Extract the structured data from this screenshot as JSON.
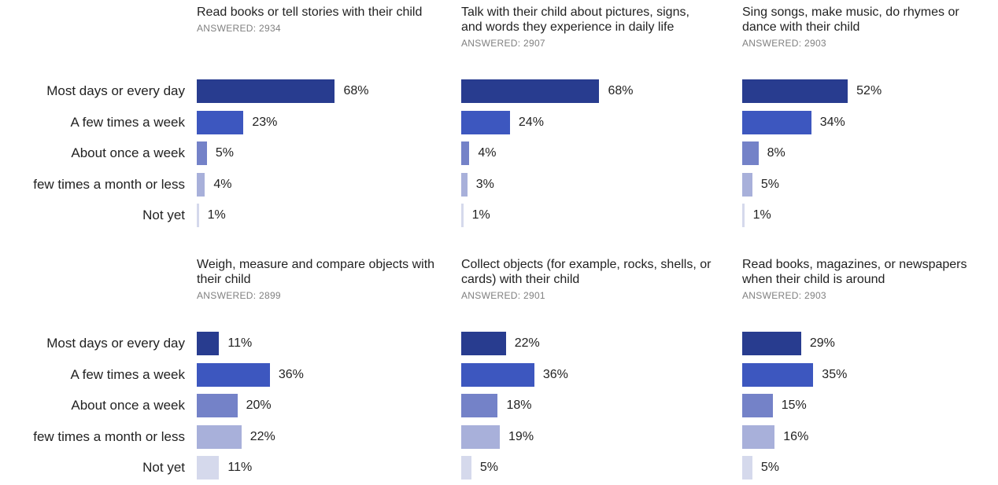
{
  "chart_data": {
    "type": "bar",
    "categories": [
      "Most days or every day",
      "A few times a week",
      "About once a week",
      "few times a month or less",
      "Not yet"
    ],
    "category_colors": [
      "#283c8f",
      "#3d57bf",
      "#7482c8",
      "#a8b0da",
      "#d5d9ec"
    ],
    "value_suffix": "%",
    "panels": [
      {
        "title": "Read books or tell stories with their child",
        "answered_label": "ANSWERED:",
        "answered": 2934,
        "values": [
          68,
          23,
          5,
          4,
          1
        ]
      },
      {
        "title": "Talk with their child about pictures, signs, and words they experience in daily life",
        "answered_label": "ANSWERED:",
        "answered": 2907,
        "values": [
          68,
          24,
          4,
          3,
          1
        ]
      },
      {
        "title": "Sing songs, make music, do rhymes or dance with their child",
        "answered_label": "ANSWERED:",
        "answered": 2903,
        "values": [
          52,
          34,
          8,
          5,
          1
        ]
      },
      {
        "title": "Weigh, measure and compare objects with their child",
        "answered_label": "ANSWERED:",
        "answered": 2899,
        "values": [
          11,
          36,
          20,
          22,
          11
        ]
      },
      {
        "title": "Collect objects (for example, rocks, shells, or cards) with their child",
        "answered_label": "ANSWERED:",
        "answered": 2901,
        "values": [
          22,
          36,
          18,
          19,
          5
        ]
      },
      {
        "title": "Read books, magazines, or newspapers when their child is around",
        "answered_label": "ANSWERED:",
        "answered": 2903,
        "values": [
          29,
          35,
          15,
          16,
          5
        ]
      }
    ]
  }
}
